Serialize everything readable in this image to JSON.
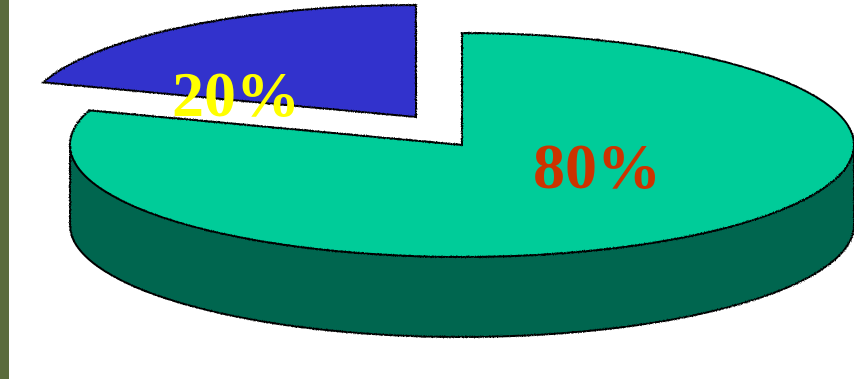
{
  "chart_data": {
    "type": "pie",
    "style": "3d-exploded",
    "slices": [
      {
        "label": "80%",
        "value": 80,
        "top_color": "#00CC99",
        "side_color": "#006650",
        "label_color": "#CC3300"
      },
      {
        "label": "20%",
        "value": 20,
        "top_color": "#3333CC",
        "side_color": "#1A1A80",
        "label_color": "#FFFF00",
        "exploded": true
      }
    ],
    "edge_color": "#000000",
    "left_strip_color": "#5A6B3C"
  }
}
